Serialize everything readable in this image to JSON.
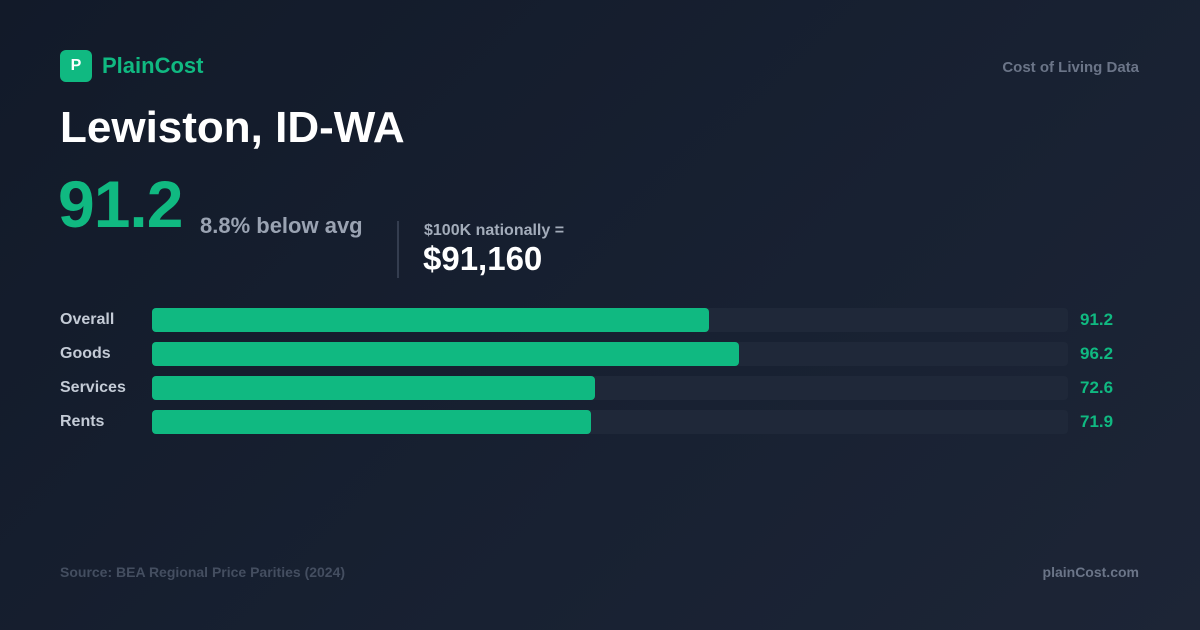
{
  "header": {
    "logo": "P",
    "brand": "PlainCost",
    "tagline": "Cost of Living Data"
  },
  "title": "Lewiston, ID-WA",
  "summary": {
    "index": "91.2",
    "index_note": "8.8% below avg",
    "equivalent_label": "$100K nationally =",
    "equivalent_value": "$91,160"
  },
  "chart_data": {
    "type": "bar",
    "orientation": "horizontal",
    "categories": [
      "Overall",
      "Goods",
      "Services",
      "Rents"
    ],
    "values": [
      91.2,
      96.2,
      72.6,
      71.9
    ],
    "color": "#10b981",
    "xlim": [
      0,
      150
    ]
  },
  "footer": {
    "source": "Source: BEA Regional Price Parities (2024)",
    "site": "plainCost.com"
  }
}
